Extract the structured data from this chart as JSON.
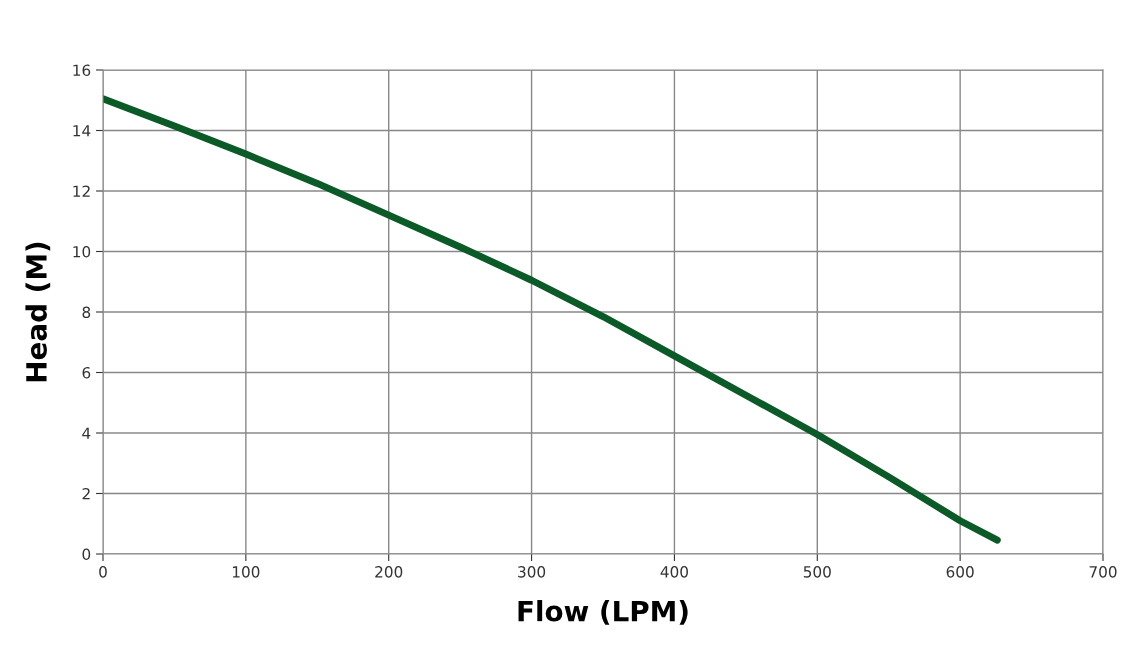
{
  "chart_data": {
    "type": "line",
    "xlabel": "Flow (LPM)",
    "ylabel": "Head (M)",
    "x": [
      0,
      50,
      100,
      150,
      200,
      250,
      300,
      350,
      400,
      450,
      500,
      550,
      600,
      626
    ],
    "series": [
      {
        "color": "#0b5a28",
        "values": [
          15.05,
          14.15,
          13.22,
          12.25,
          11.2,
          10.15,
          9.05,
          7.85,
          6.55,
          5.25,
          3.95,
          2.55,
          1.1,
          0.46
        ]
      }
    ],
    "xlim": [
      0,
      700
    ],
    "xticks": [
      0,
      100,
      200,
      300,
      400,
      500,
      600,
      700
    ],
    "ylim": [
      0,
      16
    ],
    "yticks": [
      0,
      2,
      4,
      6,
      8,
      10,
      12,
      14,
      16
    ],
    "grid": true,
    "marker": "none",
    "line_style": "solid"
  }
}
